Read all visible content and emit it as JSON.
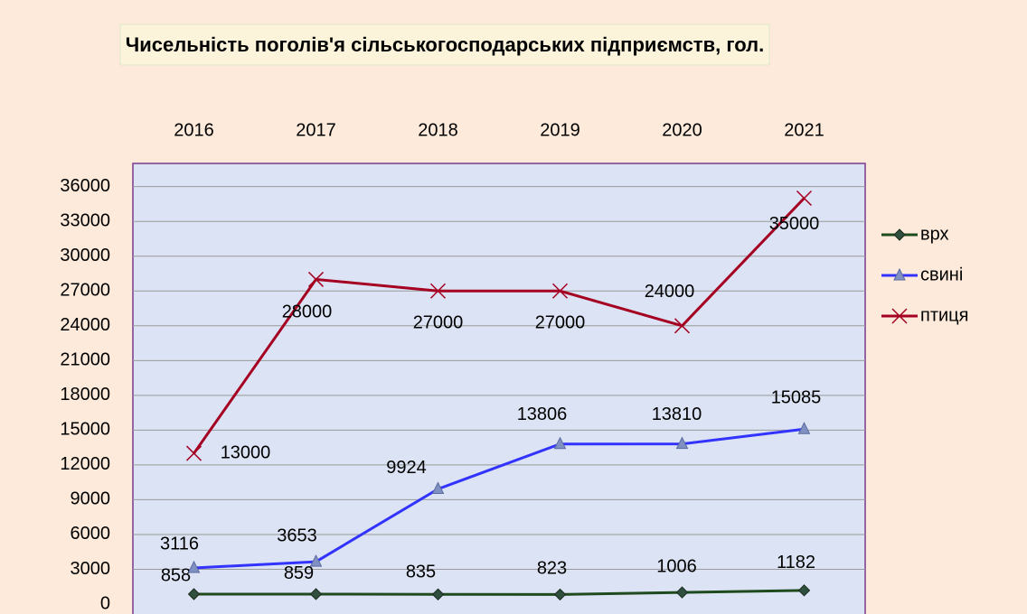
{
  "chart_data": {
    "type": "line",
    "title": "Чисельність поголів'я сільськогосподарських підприємств, гол.",
    "categories": [
      "2016",
      "2017",
      "2018",
      "2019",
      "2020",
      "2021"
    ],
    "series": [
      {
        "name": "врх",
        "color": "#1e4a1e",
        "values": [
          858,
          859,
          835,
          823,
          1006,
          1182
        ]
      },
      {
        "name": "свині",
        "color": "#3333ff",
        "values": [
          3116,
          3653,
          9924,
          13806,
          13810,
          15085
        ]
      },
      {
        "name": "птиця",
        "color": "#a50021",
        "values": [
          13000,
          28000,
          27000,
          27000,
          24000,
          35000
        ]
      }
    ],
    "ylim": [
      0,
      38000
    ],
    "yticks": [
      0,
      3000,
      6000,
      9000,
      12000,
      15000,
      18000,
      21000,
      24000,
      27000,
      30000,
      33000,
      36000
    ],
    "grid": true,
    "legend": "right"
  }
}
